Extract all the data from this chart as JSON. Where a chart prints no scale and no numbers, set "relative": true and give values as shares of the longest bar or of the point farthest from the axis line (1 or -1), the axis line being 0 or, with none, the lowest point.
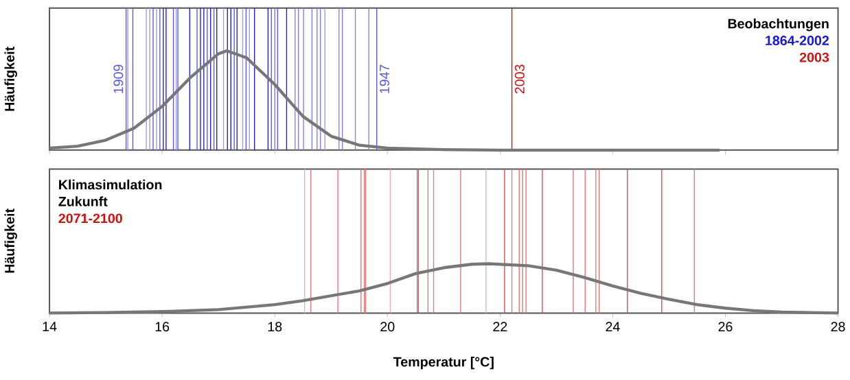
{
  "chart_data": [
    {
      "type": "line",
      "relative": true,
      "ylabel": "Häufigkeit",
      "xlim": [
        14,
        28
      ],
      "xticks": [
        14,
        16,
        18,
        20,
        22,
        24,
        26,
        28
      ],
      "tick_labels": false,
      "annotations": [
        "Beobachtungen",
        "1864-2002",
        "2003",
        {
          "text": "1909",
          "x": 15.36
        },
        {
          "text": "1947",
          "x": 19.81
        },
        {
          "text": "2003",
          "x": 22.21
        }
      ],
      "series": [
        {
          "color": "#777777",
          "x": [
            14,
            14.5,
            15,
            15.5,
            16,
            16.5,
            17,
            17.15,
            17.5,
            18,
            18.5,
            19,
            19.5,
            20,
            21,
            22,
            25.9
          ],
          "values": [
            0.02,
            0.04,
            0.1,
            0.22,
            0.44,
            0.73,
            0.97,
            1,
            0.93,
            0.66,
            0.34,
            0.14,
            0.05,
            0.02,
            0.005,
            0,
            0
          ]
        }
      ],
      "ref_lines": [
        {
          "axis": "x",
          "value": 15.36,
          "color": "#5a5ae6"
        },
        {
          "axis": "x",
          "value": 15.39,
          "color": "#9a9aee"
        },
        {
          "axis": "x",
          "value": 15.48,
          "color": "#5a5ae6"
        },
        {
          "axis": "x",
          "value": 15.72,
          "color": "#9a9aee"
        },
        {
          "axis": "x",
          "value": 15.78,
          "color": "#9a9aee"
        },
        {
          "axis": "x",
          "value": 15.84,
          "color": "#5a5ae6"
        },
        {
          "axis": "x",
          "value": 15.9,
          "color": "#9a9aee"
        },
        {
          "axis": "x",
          "value": 15.96,
          "color": "#5a5ae6"
        },
        {
          "axis": "x",
          "value": 16.02,
          "color": "#2020d0"
        },
        {
          "axis": "x",
          "value": 16.07,
          "color": "#2020d0"
        },
        {
          "axis": "x",
          "value": 16.2,
          "color": "#5a5ae6"
        },
        {
          "axis": "x",
          "value": 16.25,
          "color": "#9a9aee"
        },
        {
          "axis": "x",
          "value": 16.28,
          "color": "#5a5ae6"
        },
        {
          "axis": "x",
          "value": 16.49,
          "color": "#2020d0"
        },
        {
          "axis": "x",
          "value": 16.62,
          "color": "#5a5ae6"
        },
        {
          "axis": "x",
          "value": 16.68,
          "color": "#2020d0"
        },
        {
          "axis": "x",
          "value": 16.74,
          "color": "#2020d0"
        },
        {
          "axis": "x",
          "value": 16.8,
          "color": "#5a5ae6"
        },
        {
          "axis": "x",
          "value": 16.86,
          "color": "#2020d0"
        },
        {
          "axis": "x",
          "value": 16.92,
          "color": "#5a5ae6"
        },
        {
          "axis": "x",
          "value": 16.97,
          "color": "#2020d0"
        },
        {
          "axis": "x",
          "value": 17.09,
          "color": "#9a9aee"
        },
        {
          "axis": "x",
          "value": 17.16,
          "color": "#2020d0"
        },
        {
          "axis": "x",
          "value": 17.22,
          "color": "#2020d0"
        },
        {
          "axis": "x",
          "value": 17.28,
          "color": "#5a5ae6"
        },
        {
          "axis": "x",
          "value": 17.33,
          "color": "#2020d0"
        },
        {
          "axis": "x",
          "value": 17.43,
          "color": "#9a9aee"
        },
        {
          "axis": "x",
          "value": 17.49,
          "color": "#5a5ae6"
        },
        {
          "axis": "x",
          "value": 17.55,
          "color": "#9a9aee"
        },
        {
          "axis": "x",
          "value": 17.64,
          "color": "#2020d0"
        },
        {
          "axis": "x",
          "value": 17.88,
          "color": "#2020d0"
        },
        {
          "axis": "x",
          "value": 17.94,
          "color": "#5a5ae6"
        },
        {
          "axis": "x",
          "value": 18.0,
          "color": "#8080ea"
        },
        {
          "axis": "x",
          "value": 18.05,
          "color": "#5a5ae6"
        },
        {
          "axis": "x",
          "value": 18.21,
          "color": "#2020d0"
        },
        {
          "axis": "x",
          "value": 18.36,
          "color": "#8080ea"
        },
        {
          "axis": "x",
          "value": 18.42,
          "color": "#8080ea"
        },
        {
          "axis": "x",
          "value": 18.51,
          "color": "#8080ea"
        },
        {
          "axis": "x",
          "value": 18.66,
          "color": "#8080ea"
        },
        {
          "axis": "x",
          "value": 18.75,
          "color": "#8080ea"
        },
        {
          "axis": "x",
          "value": 18.81,
          "color": "#8080ea"
        },
        {
          "axis": "x",
          "value": 18.89,
          "color": "#9a9aee"
        },
        {
          "axis": "x",
          "value": 19.14,
          "color": "#8080ea"
        },
        {
          "axis": "x",
          "value": 19.2,
          "color": "#8080ea"
        },
        {
          "axis": "x",
          "value": 19.43,
          "color": "#8080ea"
        },
        {
          "axis": "x",
          "value": 19.67,
          "color": "#8080ea"
        },
        {
          "axis": "x",
          "value": 19.81,
          "color": "#5a5ae6"
        },
        {
          "axis": "x",
          "value": 22.21,
          "color": "#cc1111"
        }
      ]
    },
    {
      "type": "line",
      "relative": true,
      "ylabel": "Häufigkeit",
      "xlabel": "Temperatur [°C]",
      "xlim": [
        14,
        28
      ],
      "xticks": [
        14,
        16,
        18,
        20,
        22,
        24,
        26,
        28
      ],
      "annotations": [
        "Klimasimulation",
        "Zukunft",
        "2071-2100"
      ],
      "series": [
        {
          "color": "#777777",
          "x": [
            14,
            15,
            16,
            17,
            18,
            18.5,
            19,
            19.5,
            20,
            20.5,
            21,
            21.5,
            21.8,
            22.5,
            23,
            23.5,
            24,
            24.5,
            25,
            25.5,
            26,
            26.5,
            27,
            28
          ],
          "values": [
            0,
            0.01,
            0.03,
            0.07,
            0.17,
            0.25,
            0.35,
            0.45,
            0.6,
            0.8,
            0.92,
            0.99,
            1,
            0.96,
            0.87,
            0.72,
            0.55,
            0.4,
            0.28,
            0.17,
            0.1,
            0.05,
            0.02,
            0
          ]
        }
      ],
      "ref_lines": [
        {
          "axis": "x",
          "value": 18.53,
          "color": "#eab0b0"
        },
        {
          "axis": "x",
          "value": 18.64,
          "color": "#e07878"
        },
        {
          "axis": "x",
          "value": 19.12,
          "color": "#e07878"
        },
        {
          "axis": "x",
          "value": 19.53,
          "color": "#e07878"
        },
        {
          "axis": "x",
          "value": 19.59,
          "color": "#e07878"
        },
        {
          "axis": "x",
          "value": 19.61,
          "color": "#e07878"
        },
        {
          "axis": "x",
          "value": 20.05,
          "color": "#eab0b0"
        },
        {
          "axis": "x",
          "value": 20.53,
          "color": "#e05a5a"
        },
        {
          "axis": "x",
          "value": 20.55,
          "color": "#e05a5a"
        },
        {
          "axis": "x",
          "value": 20.72,
          "color": "#e07878"
        },
        {
          "axis": "x",
          "value": 20.82,
          "color": "#e07878"
        },
        {
          "axis": "x",
          "value": 21.3,
          "color": "#e07878"
        },
        {
          "axis": "x",
          "value": 21.75,
          "color": "#eab0b0"
        },
        {
          "axis": "x",
          "value": 22.08,
          "color": "#d05050"
        },
        {
          "axis": "x",
          "value": 22.21,
          "color": "#e07878"
        },
        {
          "axis": "x",
          "value": 22.34,
          "color": "#e07878"
        },
        {
          "axis": "x",
          "value": 22.4,
          "color": "#e07878"
        },
        {
          "axis": "x",
          "value": 22.46,
          "color": "#e07878"
        },
        {
          "axis": "x",
          "value": 22.75,
          "color": "#d05050"
        },
        {
          "axis": "x",
          "value": 23.3,
          "color": "#e07878"
        },
        {
          "axis": "x",
          "value": 23.51,
          "color": "#e07878"
        },
        {
          "axis": "x",
          "value": 23.7,
          "color": "#e07878"
        },
        {
          "axis": "x",
          "value": 23.76,
          "color": "#e07878"
        },
        {
          "axis": "x",
          "value": 24.26,
          "color": "#d05050"
        },
        {
          "axis": "x",
          "value": 24.87,
          "color": "#d05050"
        },
        {
          "axis": "x",
          "value": 25.45,
          "color": "#e07878"
        }
      ]
    }
  ]
}
